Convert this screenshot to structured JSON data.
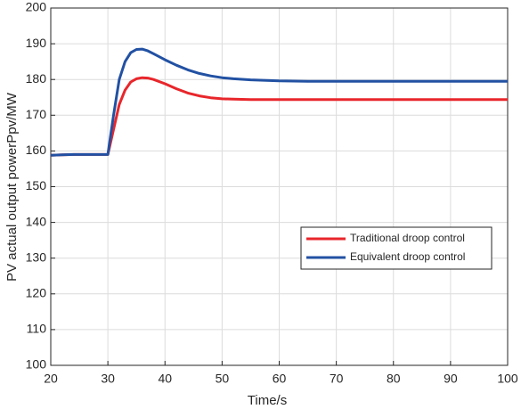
{
  "chart_data": {
    "type": "line",
    "x_label": "Time/s",
    "y_label": "PV actual output powerPpv/MW",
    "x": [
      20,
      22,
      24,
      26,
      28,
      30,
      31,
      32,
      33,
      34,
      35,
      36,
      37,
      38,
      40,
      42,
      44,
      46,
      48,
      50,
      52,
      55,
      60,
      65,
      70,
      80,
      90,
      100
    ],
    "series": [
      {
        "name": "Traditional droop control",
        "color": "#e8262b",
        "values": [
          158.8,
          158.9,
          159,
          159,
          159,
          159,
          166,
          173,
          177,
          179.3,
          180.2,
          180.5,
          180.4,
          180,
          178.8,
          177.4,
          176.2,
          175.4,
          174.9,
          174.6,
          174.5,
          174.4,
          174.4,
          174.4,
          174.4,
          174.4,
          174.4,
          174.4
        ]
      },
      {
        "name": "Equivalent droop control",
        "color": "#2251a3",
        "values": [
          158.8,
          158.9,
          159,
          159,
          159,
          159,
          170,
          180,
          185,
          187.5,
          188.4,
          188.5,
          188,
          187.2,
          185.5,
          184,
          182.7,
          181.7,
          181,
          180.5,
          180.2,
          179.9,
          179.6,
          179.5,
          179.5,
          179.5,
          179.5,
          179.5
        ]
      }
    ],
    "xlim": [
      20,
      100
    ],
    "xticks": [
      20,
      30,
      40,
      50,
      60,
      70,
      80,
      90,
      100
    ],
    "ylim": [
      100,
      200
    ],
    "yticks": [
      100,
      110,
      120,
      130,
      140,
      150,
      160,
      170,
      180,
      190,
      200
    ],
    "grid": true,
    "legend": "lower right"
  }
}
